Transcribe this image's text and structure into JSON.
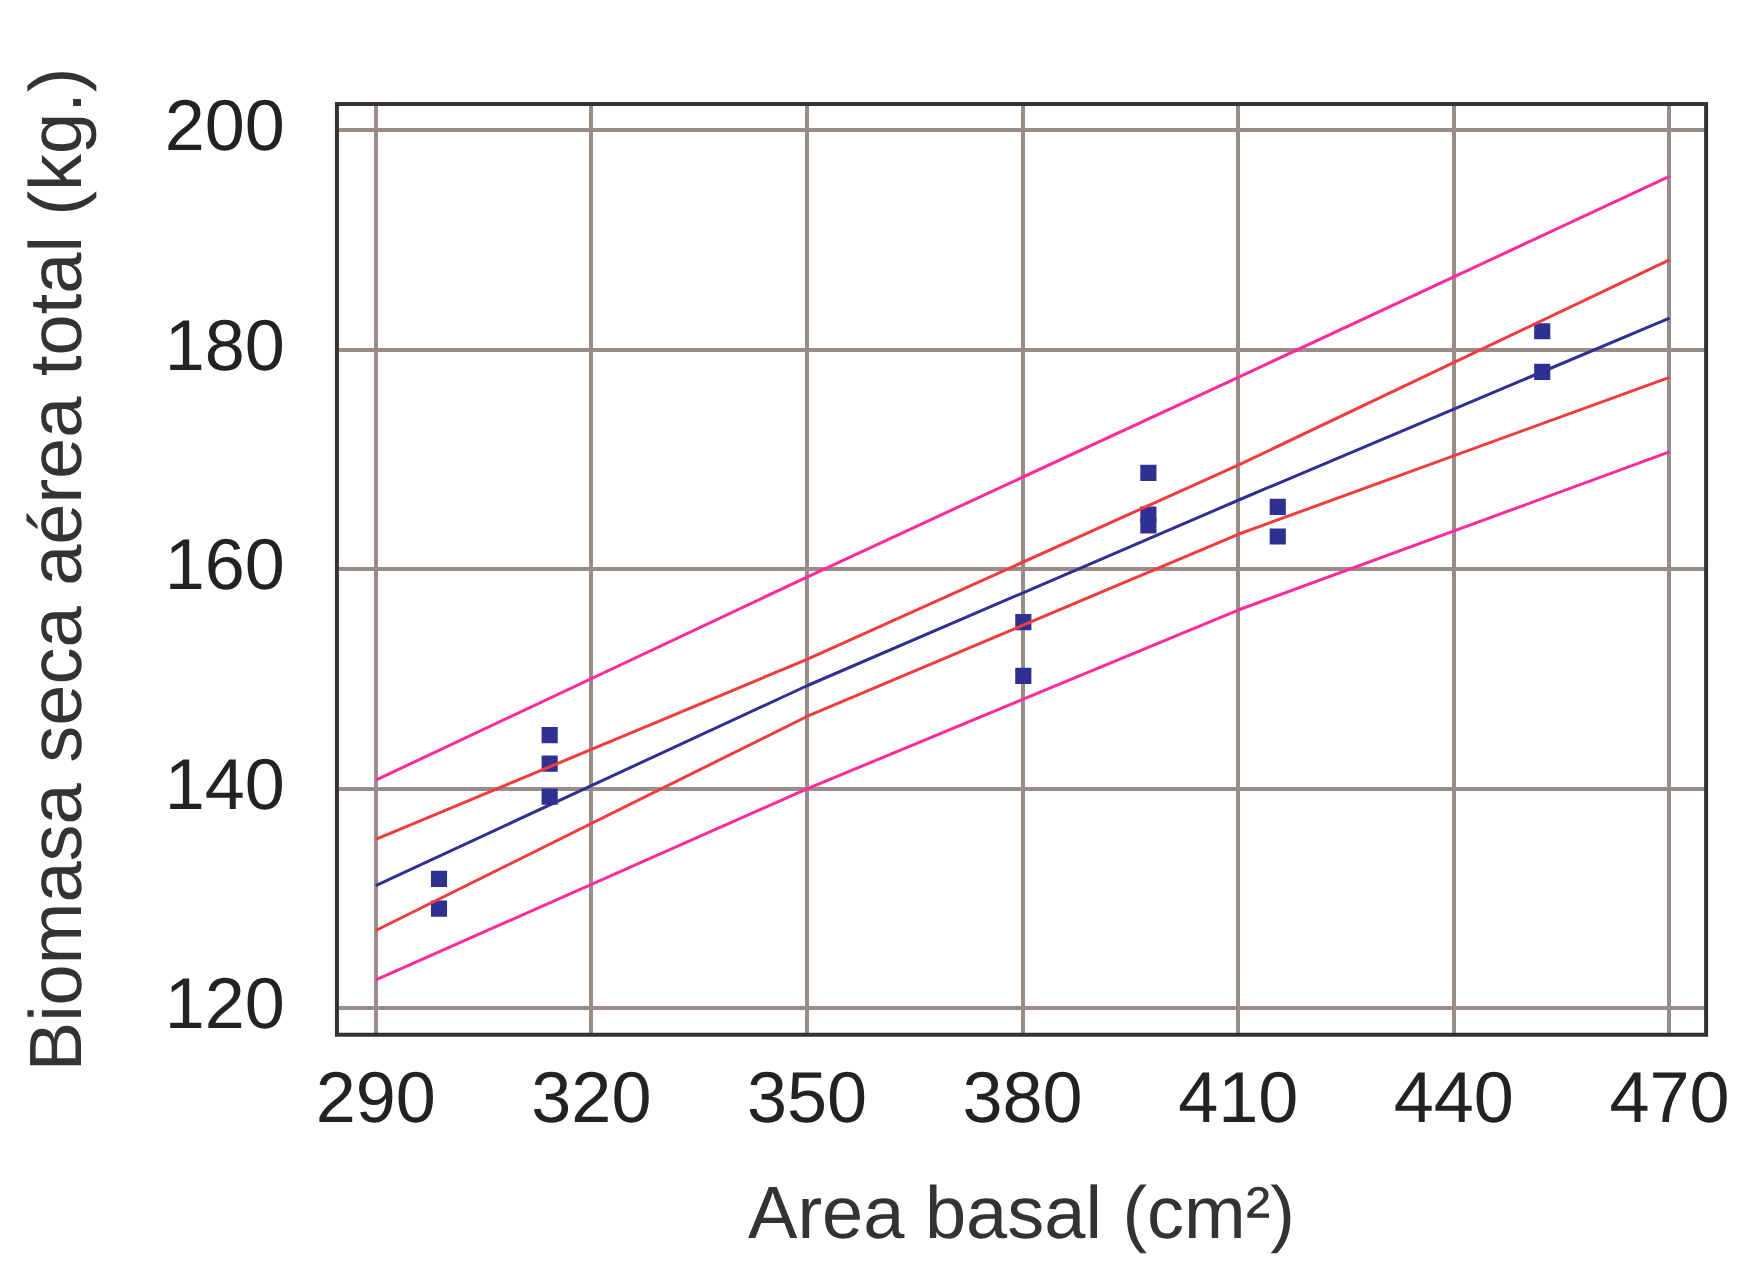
{
  "chart_data": {
    "type": "scatter",
    "xlabel": "Area basal (cm²)",
    "ylabel": "Biomasa seca aérea total (kg.)",
    "xlim": [
      284.6,
      475.1
    ],
    "ylim": [
      117.6,
      202.4
    ],
    "xticks": [
      290,
      320,
      350,
      380,
      410,
      440,
      470
    ],
    "yticks": [
      120,
      140,
      160,
      180,
      200
    ],
    "grid": true,
    "series": [
      {
        "type": "line",
        "marker": "none",
        "color": "#ff2a9c",
        "x": [
          290,
          350,
          410,
          470
        ],
        "values": [
          140.8,
          159.3,
          177.5,
          195.8
        ]
      },
      {
        "type": "line",
        "marker": "none",
        "color": "#f03c3c",
        "x": [
          290,
          350,
          410,
          470
        ],
        "values": [
          135.4,
          151.8,
          169.5,
          188.2
        ]
      },
      {
        "type": "line",
        "marker": "none",
        "color": "#2e3192",
        "x": [
          290,
          350,
          410,
          470
        ],
        "values": [
          131.2,
          149.4,
          166.3,
          182.9
        ]
      },
      {
        "type": "line",
        "marker": "none",
        "color": "#f03c3c",
        "x": [
          290,
          350,
          410,
          470
        ],
        "values": [
          127.1,
          146.6,
          163.2,
          177.5
        ]
      },
      {
        "type": "line",
        "marker": "none",
        "color": "#ff2a9c",
        "x": [
          290,
          350,
          410,
          470
        ],
        "values": [
          122.6,
          140.0,
          156.3,
          170.7
        ]
      },
      {
        "marker": "square",
        "color": "#2e3192",
        "x": [
          298.8,
          298.8,
          314.2,
          314.2,
          314.2,
          380.1,
          380.1,
          397.5,
          397.5,
          397.5,
          415.5,
          415.5,
          452.3,
          452.3
        ],
        "values": [
          131.8,
          129.1,
          144.9,
          142.3,
          139.3,
          155.2,
          150.3,
          168.8,
          165.0,
          164.0,
          165.7,
          163.0,
          181.7,
          178.0
        ]
      }
    ]
  }
}
